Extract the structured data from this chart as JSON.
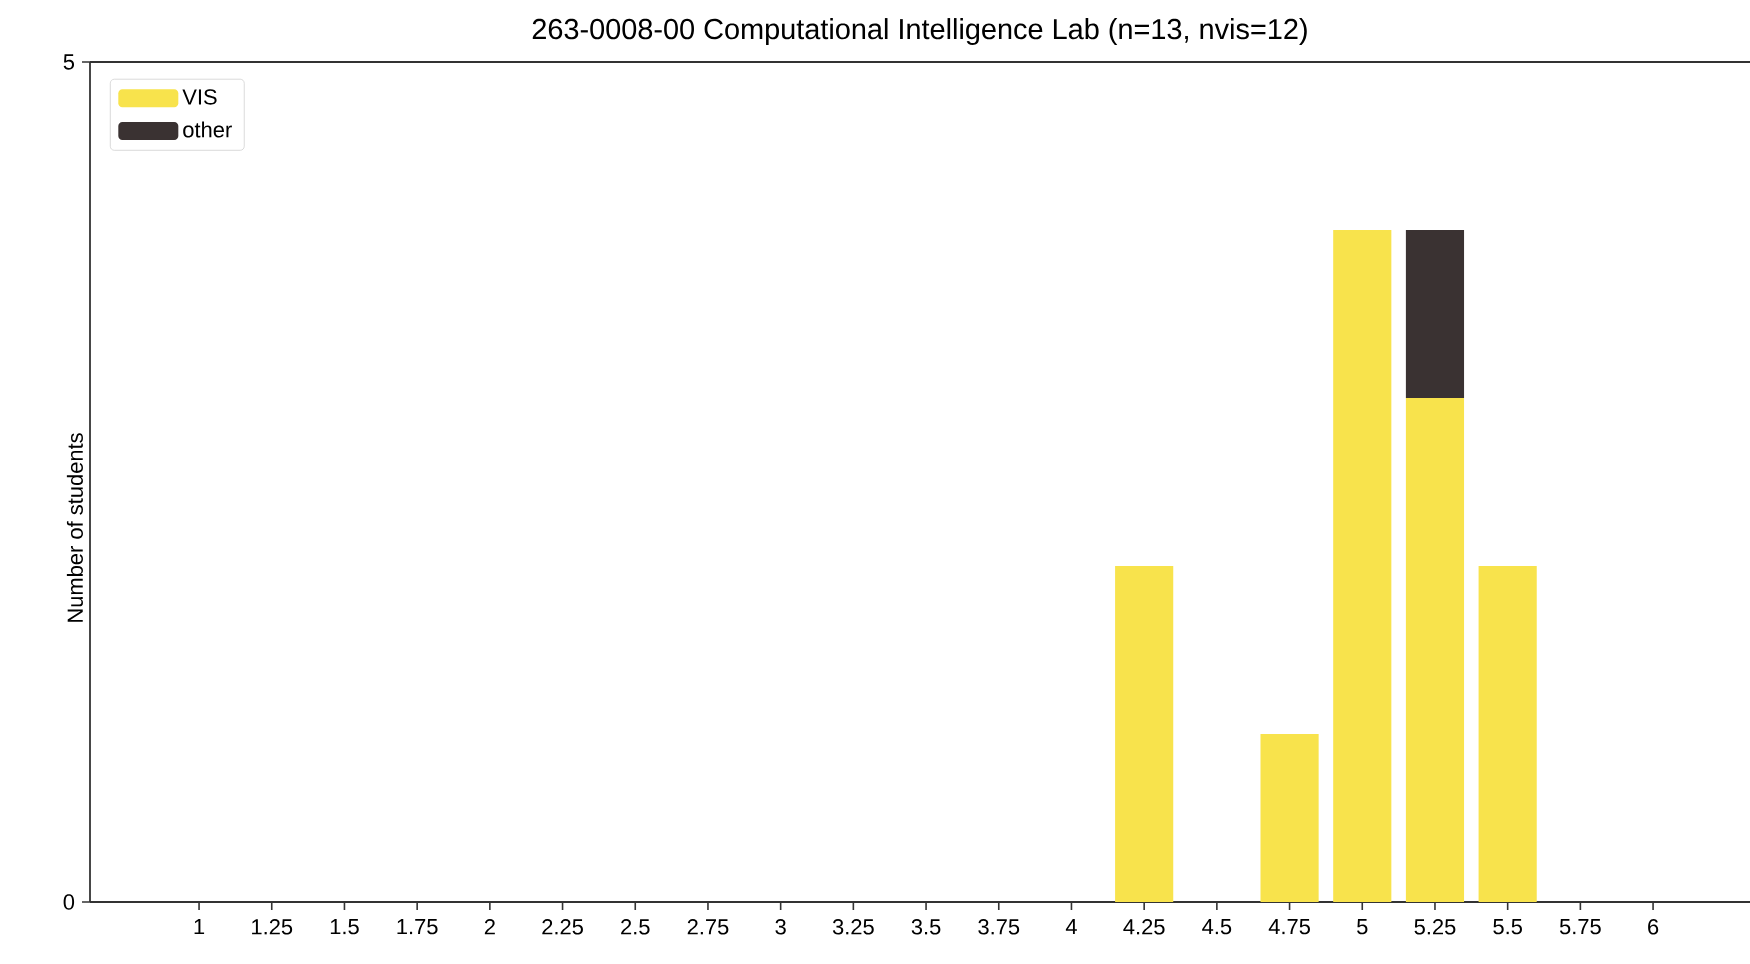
{
  "chart_data": {
    "type": "bar",
    "title": "263-0008-00 Computational Intelligence Lab (n=13, nvis=12)",
    "ylabel": "Number of students",
    "categories": [
      "1",
      "1.25",
      "1.5",
      "1.75",
      "2",
      "2.25",
      "2.5",
      "2.75",
      "3",
      "3.25",
      "3.5",
      "3.75",
      "4",
      "4.25",
      "4.5",
      "4.75",
      "5",
      "5.25",
      "5.5",
      "5.75",
      "6"
    ],
    "series": [
      {
        "name": "VIS",
        "color": "#f8e34c",
        "values": [
          0,
          0,
          0,
          0,
          0,
          0,
          0,
          0,
          0,
          0,
          0,
          0,
          0,
          2,
          0,
          1,
          4,
          3,
          2,
          0,
          0
        ]
      },
      {
        "name": "other",
        "color": "#3a3232",
        "values": [
          0,
          0,
          0,
          0,
          0,
          0,
          0,
          0,
          0,
          0,
          0,
          0,
          0,
          0,
          0,
          0,
          0,
          1,
          0,
          0,
          0
        ]
      }
    ],
    "stacked": true,
    "ylim": [
      0,
      5
    ],
    "yticks": [
      0,
      5
    ],
    "legend": "top left"
  }
}
